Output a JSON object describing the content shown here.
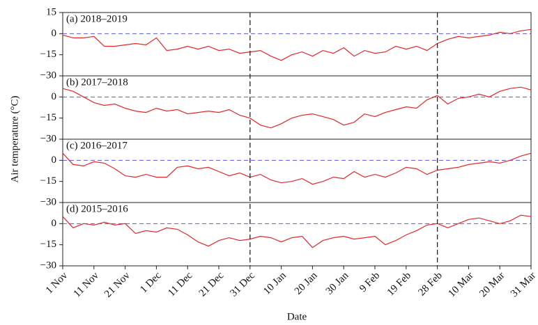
{
  "chart_data": [
    {
      "type": "line",
      "title": "(a) 2018–2019",
      "ylabel": "Air temperature (°C)",
      "ylim": [
        -30,
        15
      ],
      "yticks": [
        {
          "value": -30,
          "label": "−30"
        },
        {
          "value": -15,
          "label": "−15"
        },
        0,
        15
      ],
      "hline": 0,
      "series": [
        {
          "name": "2018–2019",
          "color": "#e8262a",
          "values": [
            -1,
            -3,
            -3,
            -2,
            -9,
            -9,
            -8,
            -7,
            -8,
            -3,
            -12,
            -11,
            -9,
            -11,
            -9,
            -12,
            -11,
            -14,
            -13,
            -12,
            -16,
            -19,
            -15,
            -13,
            -16,
            -12,
            -14,
            -10,
            -16,
            -12,
            -14,
            -13,
            -9,
            -11,
            -9,
            -12,
            -7,
            -4,
            -2,
            -3,
            -2,
            -1,
            1,
            0,
            2,
            3
          ]
        }
      ]
    },
    {
      "type": "line",
      "title": "(b) 2017–2018",
      "ylim": [
        -30,
        15
      ],
      "yticks": [
        {
          "value": -30,
          "label": "−30"
        },
        {
          "value": -15,
          "label": "−15"
        },
        0
      ],
      "hline": 0,
      "series": [
        {
          "name": "2017–2018",
          "color": "#e8262a",
          "values": [
            6,
            4,
            0,
            -4,
            -6,
            -5,
            -8,
            -10,
            -11,
            -8,
            -10,
            -9,
            -12,
            -11,
            -10,
            -11,
            -9,
            -13,
            -15,
            -20,
            -22,
            -19,
            -15,
            -13,
            -12,
            -14,
            -16,
            -20,
            -18,
            -12,
            -14,
            -11,
            -9,
            -7,
            -8,
            -2,
            1,
            -5,
            -1,
            0,
            2,
            0,
            4,
            6,
            7,
            5
          ]
        }
      ]
    },
    {
      "type": "line",
      "title": "(c) 2016–2017",
      "ylim": [
        -30,
        15
      ],
      "yticks": [
        {
          "value": -30,
          "label": "−30"
        },
        {
          "value": -15,
          "label": "−15"
        },
        0
      ],
      "hline": 0,
      "series": [
        {
          "name": "2016–2017",
          "color": "#e8262a",
          "values": [
            5,
            -3,
            -4,
            -1,
            -2,
            -6,
            -11,
            -12,
            -10,
            -12,
            -12,
            -5,
            -4,
            -6,
            -5,
            -8,
            -11,
            -9,
            -12,
            -10,
            -14,
            -16,
            -15,
            -13,
            -17,
            -15,
            -12,
            -13,
            -8,
            -12,
            -10,
            -12,
            -9,
            -5,
            -6,
            -10,
            -7,
            -6,
            -5,
            -3,
            -2,
            -1,
            -2,
            0,
            3,
            5
          ]
        }
      ]
    },
    {
      "type": "line",
      "title": "(d) 2015–2016",
      "xlabel": "Date",
      "ylim": [
        -30,
        15
      ],
      "yticks": [
        {
          "value": -30,
          "label": "−30"
        },
        {
          "value": -15,
          "label": "−15"
        },
        0
      ],
      "hline": 0,
      "categories": [
        "1 Nov",
        null,
        null,
        "11 Nov",
        null,
        null,
        "21 Nov",
        null,
        null,
        "1 Dec",
        null,
        null,
        "11 Dec",
        null,
        null,
        "21 Dec",
        null,
        null,
        "31 Dec",
        null,
        null,
        "10 Jan",
        null,
        null,
        "20 Jan",
        null,
        null,
        "30 Jan",
        null,
        null,
        "9 Feb",
        null,
        null,
        "19 Feb",
        null,
        null,
        "28 Feb",
        null,
        null,
        "10 Mar",
        null,
        null,
        "20 Mar",
        null,
        null,
        "31 Mar"
      ],
      "vlines": [
        "31 Dec",
        "28 Feb"
      ],
      "series": [
        {
          "name": "2015–2016",
          "color": "#e8262a",
          "values": [
            5,
            -3,
            0,
            -1,
            1,
            -1,
            0,
            -7,
            -5,
            -6,
            -3,
            -4,
            -8,
            -13,
            -16,
            -12,
            -10,
            -12,
            -11,
            -9,
            -10,
            -13,
            -10,
            -9,
            -17,
            -12,
            -10,
            -9,
            -11,
            -10,
            -9,
            -15,
            -12,
            -8,
            -5,
            -1,
            0,
            -3,
            0,
            3,
            4,
            2,
            0,
            2,
            6,
            5
          ]
        }
      ]
    }
  ]
}
